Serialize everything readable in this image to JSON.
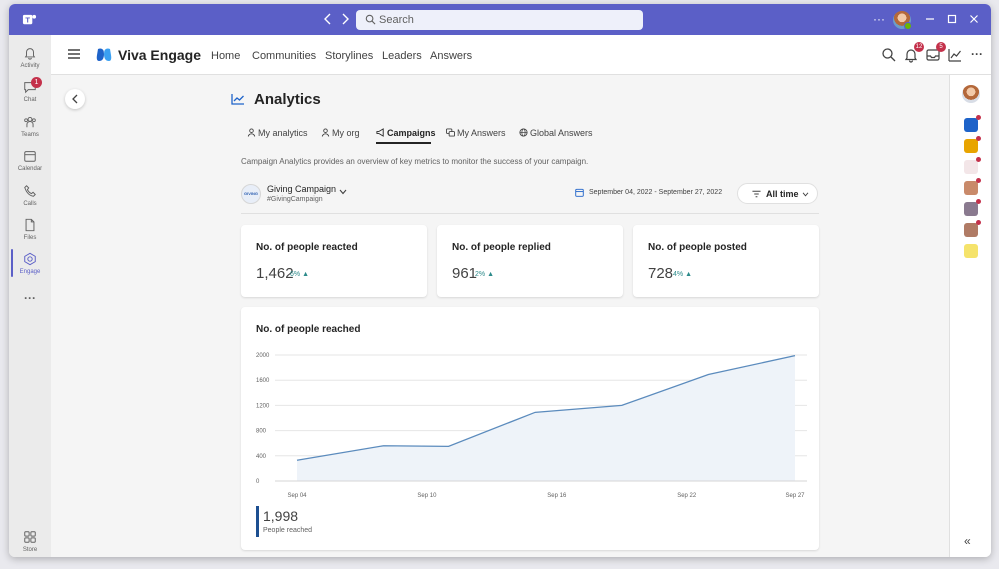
{
  "titlebar": {
    "search_placeholder": "Search",
    "more": "···"
  },
  "rail": {
    "items": [
      {
        "label": "Activity"
      },
      {
        "label": "Chat",
        "badge": "1"
      },
      {
        "label": "Teams"
      },
      {
        "label": "Calendar"
      },
      {
        "label": "Calls"
      },
      {
        "label": "Files"
      },
      {
        "label": "Engage"
      }
    ],
    "more": "···",
    "store": "Store"
  },
  "header": {
    "brand": "Viva Engage",
    "nav": [
      "Home",
      "Communities",
      "Storylines",
      "Leaders",
      "Answers"
    ],
    "notif_badge": "12",
    "inbox_badge": "5"
  },
  "page": {
    "title": "Analytics",
    "tabs": [
      "My analytics",
      "My org",
      "Campaigns",
      "My Answers",
      "Global Answers"
    ],
    "active_tab": "Campaigns",
    "description": "Campaign Analytics provides an overview of key metrics to monitor the success of your campaign.",
    "campaign": {
      "logo_text": "GIVING",
      "name": "Giving Campaign",
      "tag": "#GivingCampaign"
    },
    "date_range": "September 04, 2022 - September 27, 2022",
    "time_filter": "All time"
  },
  "stats": [
    {
      "title": "No. of people reacted",
      "value": "1,462",
      "delta": "6%"
    },
    {
      "title": "No. of people replied",
      "value": "961",
      "delta": "2%"
    },
    {
      "title": "No. of people posted",
      "value": "728",
      "delta": "4%"
    }
  ],
  "reach": {
    "title": "No. of people reached",
    "total": "1,998",
    "total_label": "People reached"
  },
  "colors": {
    "teams_purple": "#5b5fc7",
    "line": "#5b8bbd",
    "area": "#eef3f9",
    "accent_bar": "#1d4f91",
    "badge": "#c4314b"
  },
  "chart_data": {
    "type": "area",
    "title": "No. of people reached",
    "xlabel": "",
    "ylabel": "",
    "x_ticks": [
      "Sep 04",
      "Sep 10",
      "Sep 16",
      "Sep 22",
      "Sep 27"
    ],
    "y_ticks": [
      0,
      400,
      800,
      1200,
      1600,
      2000
    ],
    "ylim": [
      0,
      2000
    ],
    "x": [
      0,
      4,
      7,
      11,
      15,
      19,
      23
    ],
    "values": [
      330,
      560,
      550,
      1090,
      1200,
      1690,
      1990
    ],
    "x_domain": [
      0,
      23
    ],
    "x_tick_positions": [
      0,
      6,
      12,
      18,
      23
    ]
  }
}
